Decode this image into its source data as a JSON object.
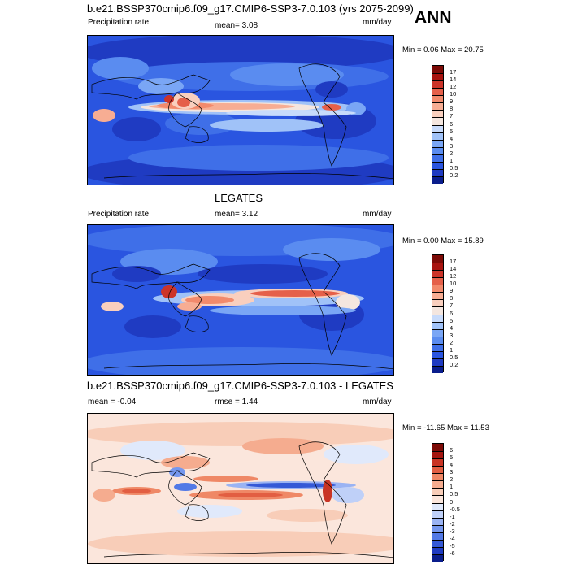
{
  "panels": [
    {
      "title": "b.e21.BSSP370cmip6.f09_g17.CMIP6-SSP3-7.0.103 (yrs 2075-2099)",
      "season": "ANN",
      "left_label": "Precipitation rate",
      "mean_label": "mean=  3.08",
      "units": "mm/day",
      "stats": "Min =   0.06 Max =  20.75",
      "colorbar": {
        "colors": [
          "#0a1d8c",
          "#1f3bc2",
          "#2a55e0",
          "#3f6fe8",
          "#5a8cf0",
          "#7aa6f5",
          "#a0c2f8",
          "#c8dbfb",
          "#f4e6df",
          "#f9cfbe",
          "#f7ad93",
          "#f28a6c",
          "#e5604a",
          "#cc3429",
          "#a8130f",
          "#7c0a06"
        ],
        "labels": [
          "17",
          "14",
          "12",
          "10",
          "9",
          "8",
          "7",
          "6",
          "5",
          "4",
          "3",
          "2",
          "1",
          "0.5",
          "0.2"
        ]
      }
    },
    {
      "title": "LEGATES",
      "left_label": "Precipitation rate",
      "mean_label": "mean=  3.12",
      "units": "mm/day",
      "stats": "Min =   0.00 Max =  15.89",
      "colorbar": {
        "colors": [
          "#0a1d8c",
          "#1f3bc2",
          "#2a55e0",
          "#3f6fe8",
          "#5a8cf0",
          "#7aa6f5",
          "#a0c2f8",
          "#c8dbfb",
          "#f4e6df",
          "#f9cfbe",
          "#f7ad93",
          "#f28a6c",
          "#e5604a",
          "#cc3429",
          "#a8130f",
          "#7c0a06"
        ],
        "labels": [
          "17",
          "14",
          "12",
          "10",
          "9",
          "8",
          "7",
          "6",
          "5",
          "4",
          "3",
          "2",
          "1",
          "0.5",
          "0.2"
        ]
      }
    },
    {
      "title": "b.e21.BSSP370cmip6.f09_g17.CMIP6-SSP3-7.0.103 - LEGATES",
      "left_label": "mean =  -0.04",
      "mean_label": "rmse =   1.44",
      "units": "mm/day",
      "stats": "Min = -11.65 Max =  11.53",
      "colorbar": {
        "colors": [
          "#0a1d8c",
          "#1f3bc2",
          "#3559d6",
          "#5279e6",
          "#7597ee",
          "#9ab3f3",
          "#bfd0f8",
          "#e0e9fb",
          "#fbe6dc",
          "#f8cdb8",
          "#f5ac8f",
          "#ef8866",
          "#e25e42",
          "#c93424",
          "#a5150f",
          "#7c0a06"
        ],
        "labels": [
          "6",
          "5",
          "4",
          "3",
          "2",
          "1",
          "0.5",
          "0",
          "-0.5",
          "-1",
          "-2",
          "-3",
          "-4",
          "-5",
          "-6"
        ]
      }
    }
  ]
}
